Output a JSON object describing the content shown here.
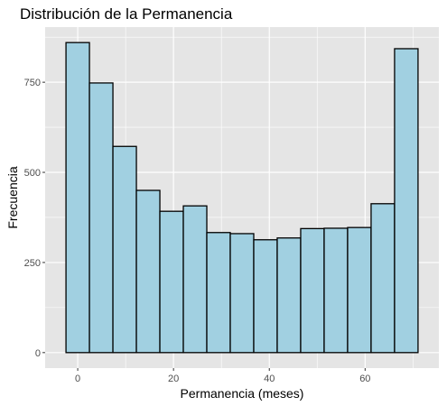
{
  "chart_data": {
    "type": "bar",
    "title": "Distribución de la Permanencia",
    "xlabel": "Permanencia (meses)",
    "ylabel": "Frecuencia",
    "bin_width": 4.9,
    "bins": [
      {
        "start": -2.45,
        "end": 2.45,
        "count": 860
      },
      {
        "start": 2.45,
        "end": 7.35,
        "count": 748
      },
      {
        "start": 7.35,
        "end": 12.25,
        "count": 572
      },
      {
        "start": 12.25,
        "end": 17.15,
        "count": 450
      },
      {
        "start": 17.15,
        "end": 22.05,
        "count": 392
      },
      {
        "start": 22.05,
        "end": 26.95,
        "count": 407
      },
      {
        "start": 26.95,
        "end": 31.85,
        "count": 333
      },
      {
        "start": 31.85,
        "end": 36.75,
        "count": 330
      },
      {
        "start": 36.75,
        "end": 41.65,
        "count": 313
      },
      {
        "start": 41.65,
        "end": 46.55,
        "count": 318
      },
      {
        "start": 46.55,
        "end": 51.45,
        "count": 344
      },
      {
        "start": 51.45,
        "end": 56.35,
        "count": 345
      },
      {
        "start": 56.35,
        "end": 61.25,
        "count": 347
      },
      {
        "start": 61.25,
        "end": 66.15,
        "count": 413
      },
      {
        "start": 66.15,
        "end": 71.05,
        "count": 843
      }
    ],
    "xlim": [
      -6.8,
      75.4
    ],
    "ylim": [
      -43,
      903
    ],
    "x_ticks": [
      0,
      20,
      40,
      60
    ],
    "x_tick_labels": [
      "0",
      "20",
      "40",
      "60"
    ],
    "y_ticks": [
      0,
      250,
      500,
      750
    ],
    "y_tick_labels": [
      "0",
      "250",
      "500",
      "750"
    ],
    "grid": true,
    "colors": {
      "panel_background": "#e5e5e5",
      "grid_major": "#ffffff",
      "bar_fill": "#a1d0e1",
      "bar_outline": "#000000",
      "tick_label": "#4d4d4d"
    }
  }
}
